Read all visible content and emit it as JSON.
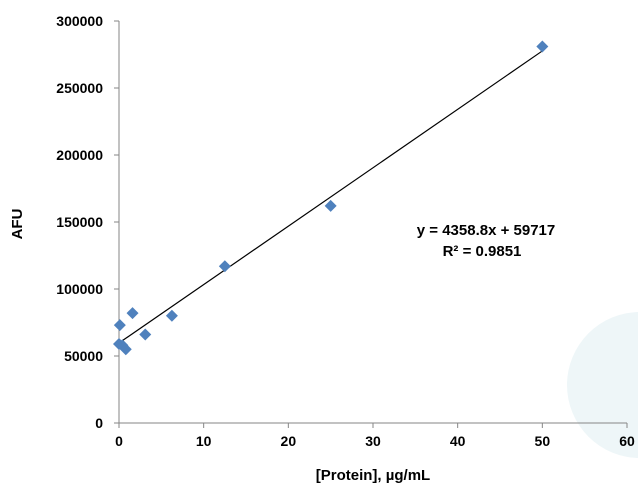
{
  "chart_data": {
    "type": "scatter",
    "xlabel": "[Protein], µg/mL",
    "ylabel": "AFU",
    "xlim": [
      0,
      60
    ],
    "ylim": [
      0,
      300000
    ],
    "x_ticks": [
      "0",
      "10",
      "20",
      "30",
      "40",
      "50",
      "60"
    ],
    "y_ticks": [
      "0",
      "50000",
      "100000",
      "150000",
      "200000",
      "250000",
      "300000"
    ],
    "grid": false,
    "legend": "none",
    "marker": "diamond",
    "series": [
      {
        "x": [
          0,
          0.1,
          0.4,
          0.8,
          1.6,
          3.1,
          6.25,
          12.5,
          25,
          50
        ],
        "y": [
          59000,
          73000,
          58000,
          55000,
          82000,
          66000,
          80000,
          117000,
          162000,
          281000
        ],
        "color": "#4F81BD"
      }
    ],
    "trendline": {
      "type": "linear",
      "slope": 4358.8,
      "intercept": 59717,
      "x_range": [
        0.4,
        50
      ],
      "color": "#000000"
    },
    "annotations": {
      "equation": "y = 4358.8x + 59717",
      "r_squared": "R² = 0.9851"
    }
  }
}
